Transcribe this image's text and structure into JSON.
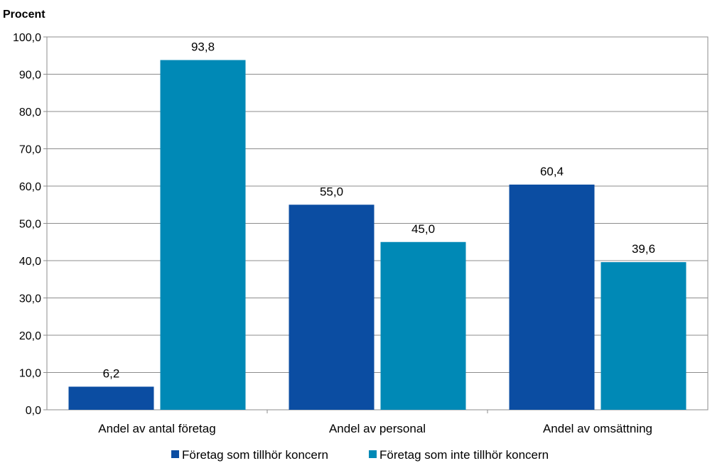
{
  "chart_data": {
    "type": "bar",
    "ylabel": "Procent",
    "ylim": [
      0,
      100
    ],
    "yticks": [
      "0,0",
      "10,0",
      "20,0",
      "30,0",
      "40,0",
      "50,0",
      "60,0",
      "70,0",
      "80,0",
      "90,0",
      "100,0"
    ],
    "categories": [
      "Andel av antal företag",
      "Andel av personal",
      "Andel av omsättning"
    ],
    "series": [
      {
        "name": "Företag som tillhör koncern",
        "color": "#0b4da2",
        "values": [
          6.2,
          55.0,
          60.4
        ],
        "labels": [
          "6,2",
          "55,0",
          "60,4"
        ]
      },
      {
        "name": "Företag som inte tillhör koncern",
        "color": "#0089b6",
        "values": [
          93.8,
          45.0,
          39.6
        ],
        "labels": [
          "93,8",
          "45,0",
          "39,6"
        ]
      }
    ],
    "grid": true,
    "legend": "bottom"
  }
}
